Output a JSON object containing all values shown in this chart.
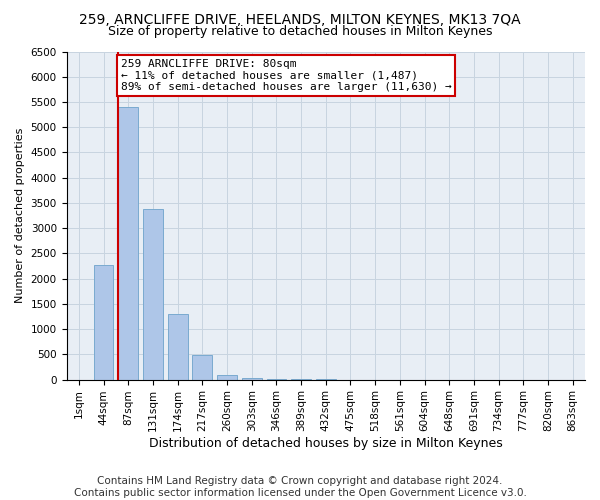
{
  "title": "259, ARNCLIFFE DRIVE, HEELANDS, MILTON KEYNES, MK13 7QA",
  "subtitle": "Size of property relative to detached houses in Milton Keynes",
  "xlabel": "Distribution of detached houses by size in Milton Keynes",
  "ylabel": "Number of detached properties",
  "categories": [
    "1sqm",
    "44sqm",
    "87sqm",
    "131sqm",
    "174sqm",
    "217sqm",
    "260sqm",
    "303sqm",
    "346sqm",
    "389sqm",
    "432sqm",
    "475sqm",
    "518sqm",
    "561sqm",
    "604sqm",
    "648sqm",
    "691sqm",
    "734sqm",
    "777sqm",
    "820sqm",
    "863sqm"
  ],
  "values": [
    0,
    2270,
    5400,
    3370,
    1290,
    480,
    100,
    40,
    10,
    5,
    2,
    1,
    0,
    0,
    0,
    0,
    0,
    0,
    0,
    0,
    0
  ],
  "bar_color": "#aec6e8",
  "bar_edge_color": "#7aaad0",
  "annotation_text": "259 ARNCLIFFE DRIVE: 80sqm\n← 11% of detached houses are smaller (1,487)\n89% of semi-detached houses are larger (11,630) →",
  "annotation_box_color": "#ffffff",
  "annotation_box_edge_color": "#cc0000",
  "vline_color": "#cc0000",
  "vline_bar_index": 2,
  "ylim": [
    0,
    6500
  ],
  "yticks": [
    0,
    500,
    1000,
    1500,
    2000,
    2500,
    3000,
    3500,
    4000,
    4500,
    5000,
    5500,
    6000,
    6500
  ],
  "footer_line1": "Contains HM Land Registry data © Crown copyright and database right 2024.",
  "footer_line2": "Contains public sector information licensed under the Open Government Licence v3.0.",
  "background_color": "#ffffff",
  "plot_bg_color": "#e8eef5",
  "grid_color": "#c8d4e0",
  "title_fontsize": 10,
  "subtitle_fontsize": 9,
  "xlabel_fontsize": 9,
  "ylabel_fontsize": 8,
  "tick_fontsize": 7.5,
  "footer_fontsize": 7.5,
  "annotation_fontsize": 8
}
